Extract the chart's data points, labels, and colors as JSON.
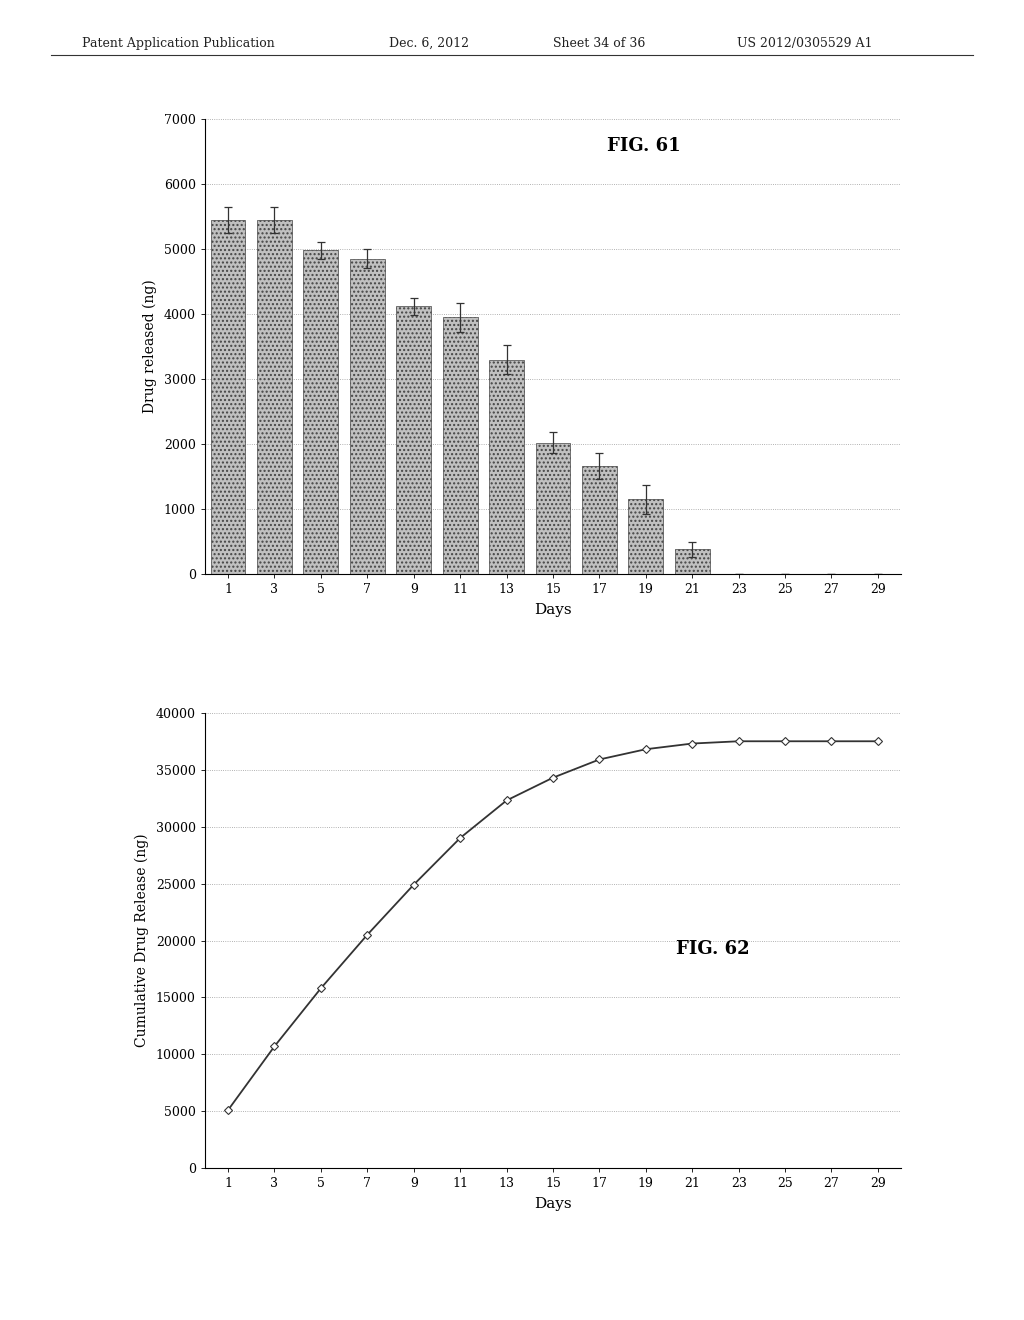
{
  "fig61": {
    "title": "FIG. 61",
    "xlabel": "Days",
    "ylabel": "Drug released (ng)",
    "days": [
      1,
      3,
      5,
      7,
      9,
      11,
      13,
      15,
      17,
      19,
      21,
      23,
      25,
      27,
      29
    ],
    "values": [
      5450,
      5450,
      4980,
      4850,
      4120,
      3950,
      3300,
      2020,
      1660,
      1150,
      380,
      0,
      0,
      0,
      0
    ],
    "errors": [
      200,
      200,
      130,
      150,
      130,
      220,
      220,
      160,
      200,
      220,
      120,
      0,
      0,
      0,
      0
    ],
    "ylim": [
      0,
      7000
    ],
    "yticks": [
      0,
      1000,
      2000,
      3000,
      4000,
      5000,
      6000,
      7000
    ],
    "bar_color": "#b0b0b0",
    "bar_hatch": "xxx",
    "ecolor": "#333333"
  },
  "fig62": {
    "title": "FIG. 62",
    "xlabel": "Days",
    "ylabel": "Cumulative Drug Release (ng)",
    "days": [
      1,
      3,
      5,
      7,
      9,
      11,
      13,
      15,
      17,
      19,
      21,
      23,
      25,
      27,
      29
    ],
    "values": [
      5100,
      10700,
      15800,
      20500,
      24900,
      29000,
      32300,
      34300,
      35900,
      36800,
      37300,
      37500,
      37500,
      37500,
      37500
    ],
    "ylim": [
      0,
      40000
    ],
    "yticks": [
      0,
      5000,
      10000,
      15000,
      20000,
      25000,
      30000,
      35000,
      40000
    ],
    "line_color": "#333333",
    "marker": "D",
    "marker_size": 4
  },
  "background_color": "#ffffff",
  "header_left": "Patent Application Publication",
  "header_mid": "Dec. 6, 2012",
  "header_sheet": "Sheet 34 of 36",
  "header_right": "US 2012/0305529 A1",
  "xtick_labels": [
    "1",
    "3",
    "5",
    "7",
    "9",
    "11",
    "13",
    "15",
    "17",
    "19",
    "21",
    "23",
    "25",
    "27",
    "29"
  ]
}
